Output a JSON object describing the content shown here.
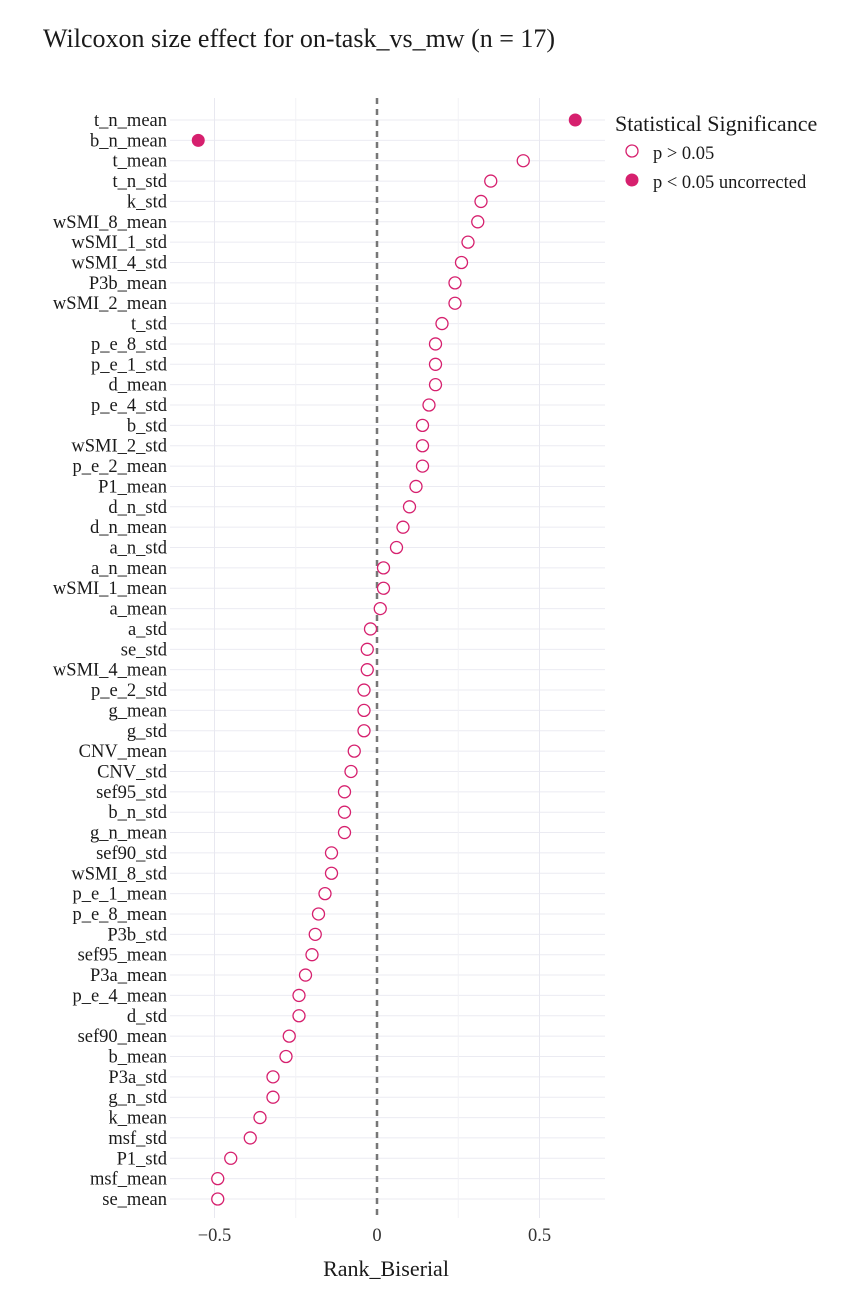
{
  "chart_data": {
    "type": "scatter",
    "title": "Wilcoxon size effect for on-task_vs_mw (n = 17)",
    "xlabel": "Rank_Biserial",
    "ylabel": "",
    "xlim": [
      -0.7,
      0.7
    ],
    "xticks": [
      -0.5,
      0,
      0.5
    ],
    "xtick_labels": [
      "−0.5",
      "0",
      "0.5"
    ],
    "reference_line": 0,
    "grid": true,
    "marker_color": "#d6206e",
    "legend": {
      "title": "Statistical Significance",
      "placement": "right",
      "entries": [
        {
          "label": "p > 0.05",
          "marker": "open"
        },
        {
          "label": "p < 0.05 uncorrected",
          "marker": "filled"
        }
      ]
    },
    "points": [
      {
        "label": "t_n_mean",
        "value": 0.61,
        "significant": true
      },
      {
        "label": "b_n_mean",
        "value": -0.55,
        "significant": true
      },
      {
        "label": "t_mean",
        "value": 0.45,
        "significant": false
      },
      {
        "label": "t_n_std",
        "value": 0.35,
        "significant": false
      },
      {
        "label": "k_std",
        "value": 0.32,
        "significant": false
      },
      {
        "label": "wSMI_8_mean",
        "value": 0.31,
        "significant": false
      },
      {
        "label": "wSMI_1_std",
        "value": 0.28,
        "significant": false
      },
      {
        "label": "wSMI_4_std",
        "value": 0.26,
        "significant": false
      },
      {
        "label": "P3b_mean",
        "value": 0.24,
        "significant": false
      },
      {
        "label": "wSMI_2_mean",
        "value": 0.24,
        "significant": false
      },
      {
        "label": "t_std",
        "value": 0.2,
        "significant": false
      },
      {
        "label": "p_e_8_std",
        "value": 0.18,
        "significant": false
      },
      {
        "label": "p_e_1_std",
        "value": 0.18,
        "significant": false
      },
      {
        "label": "d_mean",
        "value": 0.18,
        "significant": false
      },
      {
        "label": "p_e_4_std",
        "value": 0.16,
        "significant": false
      },
      {
        "label": "b_std",
        "value": 0.14,
        "significant": false
      },
      {
        "label": "wSMI_2_std",
        "value": 0.14,
        "significant": false
      },
      {
        "label": "p_e_2_mean",
        "value": 0.14,
        "significant": false
      },
      {
        "label": "P1_mean",
        "value": 0.12,
        "significant": false
      },
      {
        "label": "d_n_std",
        "value": 0.1,
        "significant": false
      },
      {
        "label": "d_n_mean",
        "value": 0.08,
        "significant": false
      },
      {
        "label": "a_n_std",
        "value": 0.06,
        "significant": false
      },
      {
        "label": "a_n_mean",
        "value": 0.02,
        "significant": false
      },
      {
        "label": "wSMI_1_mean",
        "value": 0.02,
        "significant": false
      },
      {
        "label": "a_mean",
        "value": 0.01,
        "significant": false
      },
      {
        "label": "a_std",
        "value": -0.02,
        "significant": false
      },
      {
        "label": "se_std",
        "value": -0.03,
        "significant": false
      },
      {
        "label": "wSMI_4_mean",
        "value": -0.03,
        "significant": false
      },
      {
        "label": "p_e_2_std",
        "value": -0.04,
        "significant": false
      },
      {
        "label": "g_mean",
        "value": -0.04,
        "significant": false
      },
      {
        "label": "g_std",
        "value": -0.04,
        "significant": false
      },
      {
        "label": "CNV_mean",
        "value": -0.07,
        "significant": false
      },
      {
        "label": "CNV_std",
        "value": -0.08,
        "significant": false
      },
      {
        "label": "sef95_std",
        "value": -0.1,
        "significant": false
      },
      {
        "label": "b_n_std",
        "value": -0.1,
        "significant": false
      },
      {
        "label": "g_n_mean",
        "value": -0.1,
        "significant": false
      },
      {
        "label": "sef90_std",
        "value": -0.14,
        "significant": false
      },
      {
        "label": "wSMI_8_std",
        "value": -0.14,
        "significant": false
      },
      {
        "label": "p_e_1_mean",
        "value": -0.16,
        "significant": false
      },
      {
        "label": "p_e_8_mean",
        "value": -0.18,
        "significant": false
      },
      {
        "label": "P3b_std",
        "value": -0.19,
        "significant": false
      },
      {
        "label": "sef95_mean",
        "value": -0.2,
        "significant": false
      },
      {
        "label": "P3a_mean",
        "value": -0.22,
        "significant": false
      },
      {
        "label": "p_e_4_mean",
        "value": -0.24,
        "significant": false
      },
      {
        "label": "d_std",
        "value": -0.24,
        "significant": false
      },
      {
        "label": "sef90_mean",
        "value": -0.27,
        "significant": false
      },
      {
        "label": "b_mean",
        "value": -0.28,
        "significant": false
      },
      {
        "label": "P3a_std",
        "value": -0.32,
        "significant": false
      },
      {
        "label": "g_n_std",
        "value": -0.32,
        "significant": false
      },
      {
        "label": "k_mean",
        "value": -0.36,
        "significant": false
      },
      {
        "label": "msf_std",
        "value": -0.39,
        "significant": false
      },
      {
        "label": "P1_std",
        "value": -0.45,
        "significant": false
      },
      {
        "label": "msf_mean",
        "value": -0.49,
        "significant": false
      },
      {
        "label": "se_mean",
        "value": -0.49,
        "significant": false
      }
    ]
  }
}
